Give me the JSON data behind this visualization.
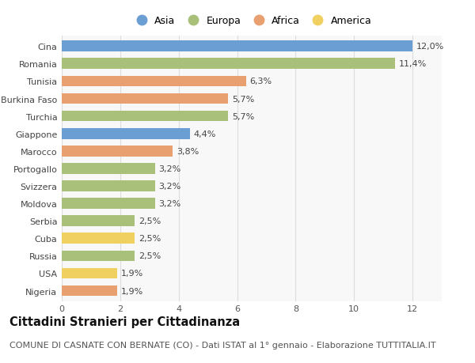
{
  "countries": [
    "Cina",
    "Romania",
    "Tunisia",
    "Burkina Faso",
    "Turchia",
    "Giappone",
    "Marocco",
    "Portogallo",
    "Svizzera",
    "Moldova",
    "Serbia",
    "Cuba",
    "Russia",
    "USA",
    "Nigeria"
  ],
  "values": [
    12.0,
    11.4,
    6.3,
    5.7,
    5.7,
    4.4,
    3.8,
    3.2,
    3.2,
    3.2,
    2.5,
    2.5,
    2.5,
    1.9,
    1.9
  ],
  "labels": [
    "12,0%",
    "11,4%",
    "6,3%",
    "5,7%",
    "5,7%",
    "4,4%",
    "3,8%",
    "3,2%",
    "3,2%",
    "3,2%",
    "2,5%",
    "2,5%",
    "2,5%",
    "1,9%",
    "1,9%"
  ],
  "continents": [
    "Asia",
    "Europa",
    "Africa",
    "Africa",
    "Europa",
    "Asia",
    "Africa",
    "Europa",
    "Europa",
    "Europa",
    "Europa",
    "America",
    "Europa",
    "America",
    "Africa"
  ],
  "colors": {
    "Asia": "#6b9fd4",
    "Europa": "#a8c07a",
    "Africa": "#e8a070",
    "America": "#f0d060"
  },
  "xlim": [
    0,
    13
  ],
  "xticks": [
    0,
    2,
    4,
    6,
    8,
    10,
    12
  ],
  "grid_color": "#dddddd",
  "background_color": "#ffffff",
  "title": "Cittadini Stranieri per Cittadinanza",
  "subtitle": "COMUNE DI CASNATE CON BERNATE (CO) - Dati ISTAT al 1° gennaio - Elaborazione TUTTITALIA.IT",
  "title_fontsize": 10.5,
  "subtitle_fontsize": 8,
  "label_fontsize": 8,
  "tick_fontsize": 8,
  "legend_order": [
    "Asia",
    "Europa",
    "Africa",
    "America"
  ]
}
